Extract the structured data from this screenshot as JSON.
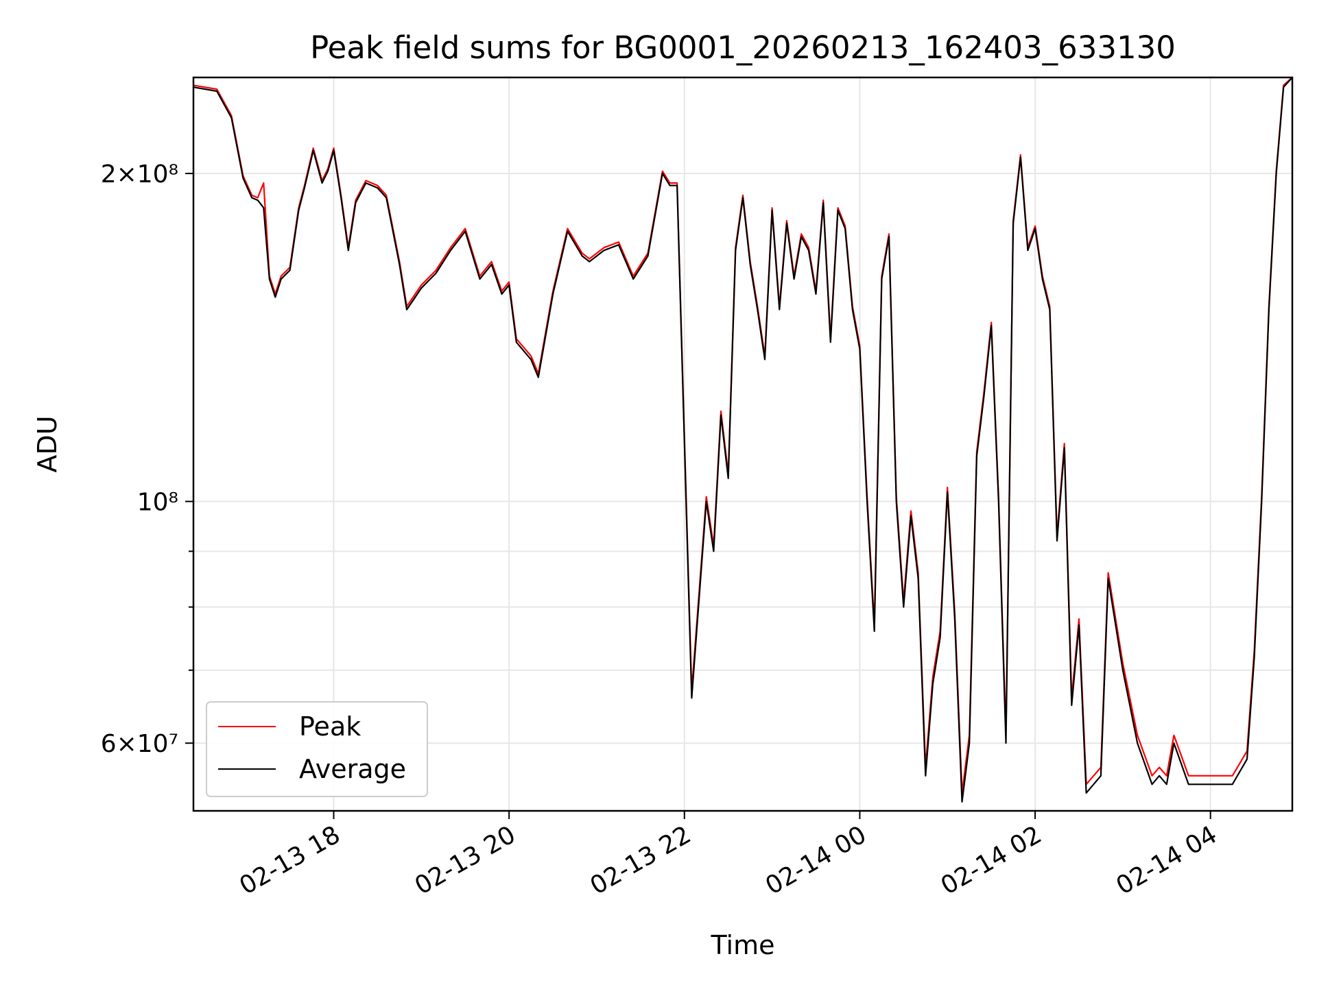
{
  "chart_data": {
    "type": "line",
    "title": "Peak field sums for BG0001_20260213_162403_633130",
    "xlabel": "Time",
    "ylabel": "ADU",
    "yscale": "log",
    "ylim": [
      52000000,
      245000000
    ],
    "xlim": [
      "02-13 16:24",
      "02-14 04:56"
    ],
    "x_ticks": [
      "02-13 18",
      "02-13 20",
      "02-13 22",
      "02-14 00",
      "02-14 02",
      "02-14 04"
    ],
    "y_ticks": [
      {
        "value": 60000000,
        "label": "6×10⁷"
      },
      {
        "value": 100000000,
        "label": "10⁸"
      },
      {
        "value": 200000000,
        "label": "2×10⁸"
      }
    ],
    "y_minor_ticks": [
      70000000,
      80000000,
      90000000
    ],
    "grid": true,
    "legend_position": "lower-left",
    "x": [
      "02-13 16:24",
      "02-13 16:40",
      "02-13 16:50",
      "02-13 16:58",
      "02-13 17:04",
      "02-13 17:08",
      "02-13 17:12",
      "02-13 17:16",
      "02-13 17:20",
      "02-13 17:24",
      "02-13 17:30",
      "02-13 17:36",
      "02-13 17:40",
      "02-13 17:46",
      "02-13 17:52",
      "02-13 17:56",
      "02-13 18:00",
      "02-13 18:05",
      "02-13 18:10",
      "02-13 18:15",
      "02-13 18:22",
      "02-13 18:30",
      "02-13 18:36",
      "02-13 18:45",
      "02-13 18:50",
      "02-13 19:00",
      "02-13 19:10",
      "02-13 19:20",
      "02-13 19:30",
      "02-13 19:40",
      "02-13 19:48",
      "02-13 19:55",
      "02-13 20:00",
      "02-13 20:05",
      "02-13 20:15",
      "02-13 20:20",
      "02-13 20:30",
      "02-13 20:40",
      "02-13 20:50",
      "02-13 20:55",
      "02-13 21:05",
      "02-13 21:15",
      "02-13 21:25",
      "02-13 21:35",
      "02-13 21:45",
      "02-13 21:50",
      "02-13 21:55",
      "02-13 22:05",
      "02-13 22:15",
      "02-13 22:20",
      "02-13 22:25",
      "02-13 22:30",
      "02-13 22:35",
      "02-13 22:40",
      "02-13 22:45",
      "02-13 22:50",
      "02-13 22:55",
      "02-13 23:00",
      "02-13 23:05",
      "02-13 23:10",
      "02-13 23:15",
      "02-13 23:20",
      "02-13 23:25",
      "02-13 23:30",
      "02-13 23:35",
      "02-13 23:40",
      "02-13 23:45",
      "02-13 23:50",
      "02-13 23:55",
      "02-14 00:00",
      "02-14 00:05",
      "02-14 00:10",
      "02-14 00:15",
      "02-14 00:20",
      "02-14 00:25",
      "02-14 00:30",
      "02-14 00:35",
      "02-14 00:40",
      "02-14 00:45",
      "02-14 00:50",
      "02-14 00:55",
      "02-14 01:00",
      "02-14 01:05",
      "02-14 01:10",
      "02-14 01:15",
      "02-14 01:20",
      "02-14 01:25",
      "02-14 01:30",
      "02-14 01:35",
      "02-14 01:40",
      "02-14 01:45",
      "02-14 01:50",
      "02-14 01:55",
      "02-14 02:00",
      "02-14 02:05",
      "02-14 02:10",
      "02-14 02:15",
      "02-14 02:20",
      "02-14 02:25",
      "02-14 02:30",
      "02-14 02:35",
      "02-14 02:40",
      "02-14 02:45",
      "02-14 02:50",
      "02-14 03:00",
      "02-14 03:10",
      "02-14 03:20",
      "02-14 03:25",
      "02-14 03:30",
      "02-14 03:35",
      "02-14 03:45",
      "02-14 04:00",
      "02-14 04:15",
      "02-14 04:25",
      "02-14 04:30",
      "02-14 04:35",
      "02-14 04:40",
      "02-14 04:45",
      "02-14 04:50",
      "02-14 04:56"
    ],
    "series": [
      {
        "name": "Average",
        "color": "#000000",
        "values": [
          240000000,
          238000000,
          225000000,
          198000000,
          190000000,
          189000000,
          186000000,
          160000000,
          154000000,
          160000000,
          163000000,
          185000000,
          194000000,
          210000000,
          196000000,
          201000000,
          210000000,
          190000000,
          170000000,
          188000000,
          196000000,
          194000000,
          190000000,
          165000000,
          150000000,
          157000000,
          162000000,
          170000000,
          177000000,
          160000000,
          165000000,
          155000000,
          158000000,
          140000000,
          135000000,
          130000000,
          155000000,
          177000000,
          168000000,
          166000000,
          170000000,
          172000000,
          160000000,
          168000000,
          200000000,
          195000000,
          195000000,
          66000000,
          100000000,
          90000000,
          120000000,
          105000000,
          170000000,
          190000000,
          165000000,
          150000000,
          135000000,
          185000000,
          150000000,
          180000000,
          160000000,
          175000000,
          170000000,
          155000000,
          188000000,
          140000000,
          185000000,
          178000000,
          150000000,
          138000000,
          100000000,
          76000000,
          160000000,
          175000000,
          100000000,
          80000000,
          97000000,
          85000000,
          56000000,
          68000000,
          75000000,
          102000000,
          78000000,
          53000000,
          60000000,
          110000000,
          125000000,
          145000000,
          100000000,
          60000000,
          180000000,
          207000000,
          170000000,
          178000000,
          160000000,
          150000000,
          92000000,
          112000000,
          65000000,
          77000000,
          54000000,
          55000000,
          56000000,
          85000000,
          70000000,
          60000000,
          55000000,
          56000000,
          55000000,
          60000000,
          55000000,
          55000000,
          55000000,
          58000000,
          72000000,
          100000000,
          150000000,
          200000000,
          240000000,
          245000000
        ]
      },
      {
        "name": "Peak",
        "color": "#ff0000",
        "values": [
          241000000,
          239000000,
          226000000,
          199000000,
          191000000,
          190000000,
          196000000,
          161000000,
          155000000,
          161000000,
          164000000,
          186000000,
          195000000,
          211000000,
          197000000,
          202000000,
          211000000,
          191000000,
          171000000,
          189000000,
          197000000,
          195000000,
          191000000,
          166000000,
          151000000,
          158000000,
          163000000,
          171000000,
          178000000,
          161000000,
          166000000,
          156000000,
          159000000,
          141000000,
          136000000,
          131000000,
          156000000,
          178000000,
          169000000,
          167000000,
          171000000,
          173000000,
          161000000,
          169000000,
          201000000,
          196000000,
          196000000,
          67000000,
          101000000,
          91000000,
          121000000,
          106000000,
          171000000,
          191000000,
          166000000,
          151000000,
          136000000,
          186000000,
          151000000,
          181000000,
          161000000,
          176000000,
          171000000,
          156000000,
          189000000,
          141000000,
          186000000,
          179000000,
          151000000,
          139000000,
          101000000,
          77000000,
          161000000,
          176000000,
          101000000,
          81000000,
          98000000,
          86000000,
          57000000,
          69000000,
          76000000,
          103000000,
          79000000,
          54000000,
          61000000,
          111000000,
          126000000,
          146000000,
          101000000,
          61000000,
          181000000,
          208000000,
          171000000,
          179000000,
          161000000,
          151000000,
          93000000,
          113000000,
          66000000,
          78000000,
          55000000,
          56000000,
          57000000,
          86000000,
          71000000,
          61000000,
          56000000,
          57000000,
          56000000,
          61000000,
          56000000,
          56000000,
          56000000,
          59000000,
          73000000,
          101000000,
          151000000,
          201000000,
          241000000,
          246000000
        ]
      }
    ]
  }
}
